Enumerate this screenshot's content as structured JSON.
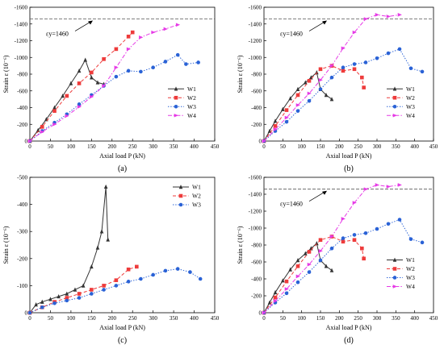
{
  "colors": {
    "W1": "#333333",
    "W2": "#ee3b3b",
    "W3": "#2a62d6",
    "W4": "#e63ae6",
    "ref": "#555555"
  },
  "chart_data": [
    {
      "panel_label": "(a)",
      "type": "line",
      "xlabel": "Axial load P (kN)",
      "ylabel": "Strain ε (10⁻⁶)",
      "xlim": [
        0,
        450
      ],
      "ylim": [
        0,
        -1600
      ],
      "xticks": [
        0,
        50,
        100,
        150,
        200,
        250,
        300,
        350,
        400,
        450
      ],
      "yticks": [
        0,
        -200,
        -400,
        -600,
        -800,
        -1000,
        -1200,
        -1400,
        -1600
      ],
      "annotation": {
        "text": "εy=1460",
        "value": -1460
      },
      "legend_position": "middle-right",
      "series": [
        {
          "name": "W1",
          "color_key": "W1",
          "marker": "triangle",
          "dash": "solid",
          "x": [
            0,
            20,
            40,
            60,
            80,
            100,
            120,
            135,
            150,
            165,
            180
          ],
          "y": [
            0,
            -130,
            -260,
            -400,
            -540,
            -690,
            -840,
            -970,
            -760,
            -700,
            -680
          ]
        },
        {
          "name": "W2",
          "color_key": "W2",
          "marker": "square",
          "dash": "dashed",
          "x": [
            0,
            30,
            60,
            90,
            120,
            150,
            180,
            210,
            240,
            250
          ],
          "y": [
            0,
            -170,
            -360,
            -540,
            -690,
            -820,
            -980,
            -1100,
            -1250,
            -1300
          ]
        },
        {
          "name": "W3",
          "color_key": "W3",
          "marker": "circle",
          "dash": "dotted",
          "x": [
            0,
            30,
            60,
            90,
            120,
            150,
            180,
            210,
            240,
            270,
            300,
            330,
            360,
            380,
            410
          ],
          "y": [
            0,
            -120,
            -220,
            -320,
            -440,
            -550,
            -660,
            -770,
            -840,
            -830,
            -880,
            -950,
            -1030,
            -920,
            -940
          ]
        },
        {
          "name": "W4",
          "color_key": "W4",
          "marker": "triangle-right",
          "dash": "dashdot",
          "x": [
            0,
            30,
            60,
            90,
            120,
            150,
            180,
            210,
            240,
            270,
            300,
            330,
            360
          ],
          "y": [
            0,
            -110,
            -200,
            -300,
            -410,
            -530,
            -660,
            -880,
            -1100,
            -1240,
            -1300,
            -1340,
            -1390
          ]
        }
      ]
    },
    {
      "panel_label": "(b)",
      "type": "line",
      "xlabel": "Axial load P (kN)",
      "ylabel": "Strain ε (10⁻⁶)",
      "xlim": [
        0,
        450
      ],
      "ylim": [
        0,
        -1600
      ],
      "xticks": [
        0,
        50,
        100,
        150,
        200,
        250,
        300,
        350,
        400,
        450
      ],
      "yticks": [
        0,
        -200,
        -400,
        -600,
        -800,
        -1000,
        -1200,
        -1400,
        -1600
      ],
      "annotation": {
        "text": "εy=1460",
        "value": -1460
      },
      "legend_position": "middle-right",
      "series": [
        {
          "name": "W1",
          "color_key": "W1",
          "marker": "triangle",
          "dash": "solid",
          "x": [
            0,
            15,
            30,
            50,
            70,
            90,
            110,
            125,
            140,
            150,
            165,
            180
          ],
          "y": [
            0,
            -120,
            -240,
            -380,
            -510,
            -620,
            -700,
            -760,
            -820,
            -620,
            -550,
            -500
          ]
        },
        {
          "name": "W2",
          "color_key": "W2",
          "marker": "square",
          "dash": "dashed",
          "x": [
            0,
            30,
            60,
            90,
            120,
            150,
            180,
            210,
            240,
            260,
            265
          ],
          "y": [
            0,
            -180,
            -370,
            -550,
            -720,
            -860,
            -900,
            -840,
            -860,
            -760,
            -640
          ]
        },
        {
          "name": "W3",
          "color_key": "W3",
          "marker": "circle",
          "dash": "dotted",
          "x": [
            0,
            30,
            60,
            90,
            120,
            150,
            180,
            210,
            240,
            270,
            300,
            330,
            360,
            390,
            420
          ],
          "y": [
            0,
            -120,
            -230,
            -360,
            -480,
            -620,
            -760,
            -880,
            -920,
            -940,
            -990,
            -1050,
            -1100,
            -870,
            -830
          ]
        },
        {
          "name": "W4",
          "color_key": "W4",
          "marker": "triangle-right",
          "dash": "dashdot",
          "x": [
            0,
            30,
            60,
            90,
            120,
            150,
            180,
            210,
            240,
            270,
            300,
            330,
            360
          ],
          "y": [
            0,
            -140,
            -280,
            -430,
            -570,
            -730,
            -900,
            -1110,
            -1300,
            -1460,
            -1510,
            -1490,
            -1510
          ]
        }
      ]
    },
    {
      "panel_label": "(c)",
      "type": "line",
      "xlabel": "Axial load P (kN)",
      "ylabel": "Strain ε (10⁻⁶)",
      "xlim": [
        0,
        450
      ],
      "ylim": [
        0,
        -500
      ],
      "xticks": [
        0,
        50,
        100,
        150,
        200,
        250,
        300,
        350,
        400,
        450
      ],
      "yticks": [
        0,
        -100,
        -200,
        -300,
        -400,
        -500
      ],
      "legend_position": "top-right",
      "series": [
        {
          "name": "W1",
          "color_key": "W1",
          "marker": "triangle",
          "dash": "solid",
          "x": [
            0,
            15,
            30,
            50,
            70,
            90,
            110,
            130,
            150,
            165,
            175,
            185,
            190
          ],
          "y": [
            0,
            -30,
            -40,
            -50,
            -60,
            -70,
            -85,
            -100,
            -170,
            -240,
            -300,
            -465,
            -270
          ]
        },
        {
          "name": "W2",
          "color_key": "W2",
          "marker": "square",
          "dash": "dashed",
          "x": [
            0,
            30,
            60,
            90,
            120,
            150,
            180,
            210,
            240,
            260
          ],
          "y": [
            0,
            -20,
            -40,
            -55,
            -70,
            -85,
            -100,
            -120,
            -160,
            -170
          ]
        },
        {
          "name": "W3",
          "color_key": "W3",
          "marker": "circle",
          "dash": "dotted",
          "x": [
            0,
            30,
            60,
            90,
            120,
            150,
            180,
            210,
            240,
            270,
            300,
            330,
            360,
            390,
            415
          ],
          "y": [
            0,
            -20,
            -35,
            -45,
            -55,
            -70,
            -85,
            -100,
            -115,
            -125,
            -140,
            -155,
            -162,
            -150,
            -125
          ]
        }
      ]
    },
    {
      "panel_label": "(d)",
      "type": "line",
      "xlabel": "Axial load P (kN)",
      "ylabel": "Strain ε (10⁻⁶)",
      "xlim": [
        0,
        450
      ],
      "ylim": [
        0,
        -1600
      ],
      "xticks": [
        0,
        50,
        100,
        150,
        200,
        250,
        300,
        350,
        400,
        450
      ],
      "yticks": [
        0,
        -200,
        -400,
        -600,
        -800,
        -1000,
        -1200,
        -1400,
        -1600
      ],
      "annotation": {
        "text": "εy=1460",
        "value": -1460
      },
      "legend_position": "middle-right",
      "series": [
        {
          "name": "W1",
          "color_key": "W1",
          "marker": "triangle",
          "dash": "solid",
          "x": [
            0,
            15,
            30,
            50,
            70,
            90,
            110,
            125,
            140,
            150,
            165,
            180
          ],
          "y": [
            0,
            -120,
            -240,
            -380,
            -510,
            -620,
            -700,
            -760,
            -820,
            -620,
            -550,
            -500
          ]
        },
        {
          "name": "W2",
          "color_key": "W2",
          "marker": "square",
          "dash": "dashed",
          "x": [
            0,
            30,
            60,
            90,
            120,
            150,
            180,
            210,
            240,
            260,
            265
          ],
          "y": [
            0,
            -180,
            -370,
            -550,
            -720,
            -860,
            -900,
            -840,
            -860,
            -760,
            -640
          ]
        },
        {
          "name": "W3",
          "color_key": "W3",
          "marker": "circle",
          "dash": "dotted",
          "x": [
            0,
            30,
            60,
            90,
            120,
            150,
            180,
            210,
            240,
            270,
            300,
            330,
            360,
            390,
            420
          ],
          "y": [
            0,
            -120,
            -230,
            -360,
            -480,
            -620,
            -760,
            -880,
            -920,
            -940,
            -990,
            -1050,
            -1100,
            -870,
            -830
          ]
        },
        {
          "name": "W4",
          "color_key": "W4",
          "marker": "triangle-right",
          "dash": "dashdot",
          "x": [
            0,
            30,
            60,
            90,
            120,
            150,
            180,
            210,
            240,
            270,
            300,
            330,
            360
          ],
          "y": [
            0,
            -140,
            -280,
            -430,
            -570,
            -730,
            -900,
            -1110,
            -1300,
            -1460,
            -1510,
            -1490,
            -1510
          ]
        }
      ]
    }
  ]
}
